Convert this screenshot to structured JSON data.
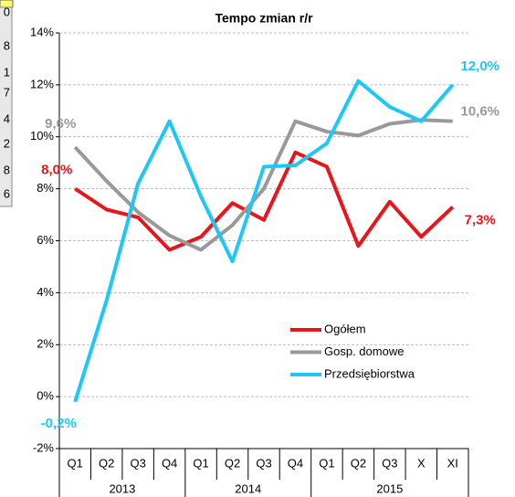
{
  "chart_data": {
    "type": "line",
    "title": "Tempo zmian r/r",
    "categories": [
      "Q1",
      "Q2",
      "Q3",
      "Q4",
      "Q1",
      "Q2",
      "Q3",
      "Q4",
      "Q1",
      "Q2",
      "Q3",
      "X",
      "XI"
    ],
    "groups": [
      "2013",
      "2014",
      "2015"
    ],
    "side_cells": [
      "0",
      "8",
      "1",
      "7",
      "4",
      "2",
      "8",
      "6"
    ],
    "ylim": [
      -2,
      14
    ],
    "yticks": [
      {
        "value": -2,
        "label": "-2%"
      },
      {
        "value": 0,
        "label": "0%"
      },
      {
        "value": 2,
        "label": "2%"
      },
      {
        "value": 4,
        "label": "4%"
      },
      {
        "value": 6,
        "label": "6%"
      },
      {
        "value": 8,
        "label": "8%"
      },
      {
        "value": 10,
        "label": "10%"
      },
      {
        "value": 12,
        "label": "12%"
      },
      {
        "value": 14,
        "label": "14%"
      }
    ],
    "grid": true,
    "legend": "lower right",
    "series": [
      {
        "name": "Ogółem",
        "color": "#e8161b",
        "values": [
          8.0,
          7.2,
          6.9,
          5.65,
          6.15,
          7.45,
          6.8,
          9.4,
          8.85,
          5.8,
          7.5,
          6.15,
          7.3
        ],
        "value_labels": [
          "8,0%",
          null,
          null,
          null,
          null,
          null,
          null,
          null,
          null,
          null,
          null,
          null,
          "7,3%"
        ]
      },
      {
        "name": "Gosp. domowe",
        "color": "#999999",
        "values": [
          9.6,
          8.3,
          7.1,
          6.2,
          5.65,
          6.6,
          8.0,
          10.6,
          10.2,
          10.05,
          10.5,
          10.65,
          10.6
        ],
        "value_labels": [
          "9,6%",
          null,
          null,
          null,
          null,
          null,
          null,
          null,
          null,
          null,
          null,
          null,
          "10,6%"
        ]
      },
      {
        "name": "Przedsiębiorstwa",
        "color": "#1ec8f5",
        "values": [
          -0.2,
          3.7,
          8.2,
          10.6,
          7.7,
          5.2,
          8.85,
          8.9,
          9.75,
          12.15,
          11.15,
          10.6,
          12.0
        ],
        "value_labels": [
          "-0,2%",
          null,
          null,
          null,
          null,
          null,
          null,
          null,
          null,
          null,
          null,
          null,
          "12,0%"
        ]
      }
    ]
  }
}
